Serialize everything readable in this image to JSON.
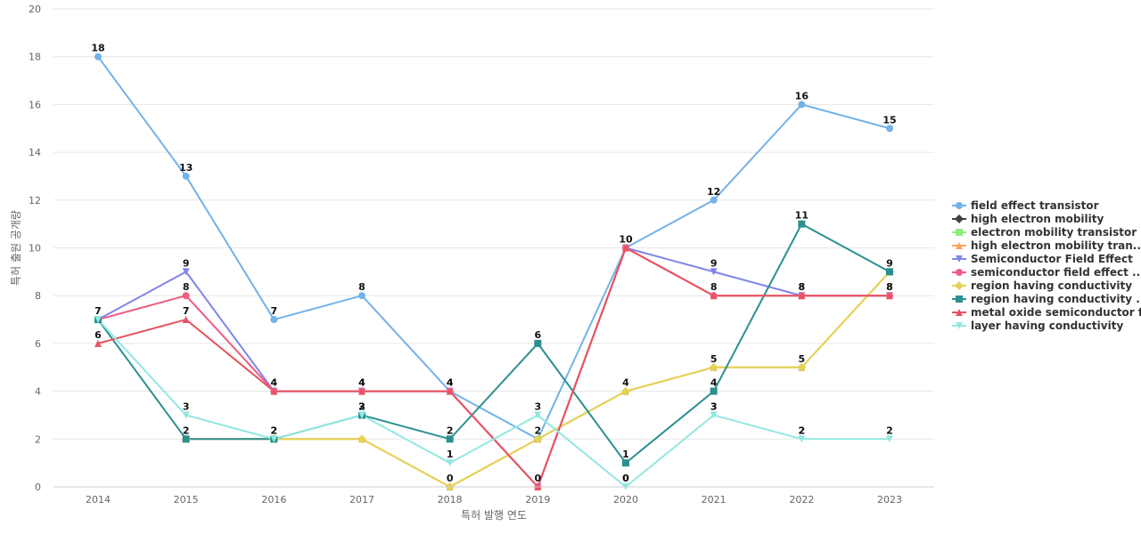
{
  "chart_data": {
    "type": "line",
    "title": "",
    "xlabel": "특허 발행 연도",
    "ylabel": "특허 출원 공개량",
    "ylim": [
      0,
      20
    ],
    "yticks": [
      0,
      2,
      4,
      6,
      8,
      10,
      12,
      14,
      16,
      18,
      20
    ],
    "grid": true,
    "legend_position": "right",
    "categories": [
      "2014",
      "2015",
      "2016",
      "2017",
      "2018",
      "2019",
      "2020",
      "2021",
      "2022",
      "2023"
    ],
    "series": [
      {
        "name": "field effect transistor",
        "color": "#74b2e8",
        "marker": "circle",
        "values": [
          18,
          13,
          7,
          8,
          4,
          2,
          10,
          12,
          16,
          15
        ],
        "labels": [
          18,
          13,
          7,
          8,
          null,
          null,
          null,
          12,
          16,
          15
        ]
      },
      {
        "name": "high electron mobility",
        "color": "#404040",
        "marker": "diamond",
        "values": [
          null,
          null,
          null,
          null,
          null,
          null,
          null,
          null,
          null,
          null
        ],
        "labels": [
          null,
          null,
          null,
          null,
          null,
          null,
          null,
          null,
          null,
          null
        ]
      },
      {
        "name": "electron mobility transistor",
        "color": "#90ed7d",
        "marker": "square",
        "values": [
          null,
          null,
          null,
          null,
          null,
          null,
          null,
          null,
          null,
          null
        ],
        "labels": [
          null,
          null,
          null,
          null,
          null,
          null,
          null,
          null,
          null,
          null
        ]
      },
      {
        "name": "high electron mobility tran...",
        "color": "#f7a35c",
        "marker": "triangle",
        "values": [
          null,
          2,
          2,
          2,
          0,
          2,
          4,
          5,
          5,
          9
        ],
        "labels": [
          null,
          null,
          null,
          null,
          null,
          null,
          null,
          null,
          null,
          null
        ]
      },
      {
        "name": "Semiconductor Field Effect",
        "color": "#8085e9",
        "marker": "triangle-down",
        "values": [
          7,
          9,
          4,
          4,
          4,
          0,
          10,
          9,
          8,
          8
        ],
        "labels": [
          null,
          9,
          null,
          null,
          null,
          null,
          null,
          9,
          null,
          null
        ]
      },
      {
        "name": "semiconductor field effect ...",
        "color": "#f15c80",
        "marker": "circle",
        "values": [
          7,
          8,
          4,
          4,
          4,
          0,
          10,
          8,
          8,
          8
        ],
        "labels": [
          null,
          8,
          null,
          null,
          null,
          null,
          null,
          null,
          null,
          null
        ]
      },
      {
        "name": "region having conductivity",
        "color": "#e4d354",
        "marker": "diamond",
        "values": [
          null,
          2,
          2,
          2,
          0,
          2,
          4,
          5,
          5,
          9
        ],
        "labels": [
          null,
          null,
          null,
          null,
          null,
          null,
          4,
          5,
          5,
          null
        ]
      },
      {
        "name": "region having conductivity ...",
        "color": "#2b908f",
        "marker": "square",
        "values": [
          7,
          2,
          2,
          3,
          2,
          6,
          1,
          4,
          11,
          9
        ],
        "labels": [
          null,
          2,
          2,
          2,
          2,
          6,
          1,
          4,
          11,
          9
        ]
      },
      {
        "name": "metal oxide semiconductor f...",
        "color": "#e8525f",
        "marker": "triangle",
        "values": [
          6,
          7,
          4,
          4,
          4,
          0,
          10,
          8,
          8,
          8
        ],
        "labels": [
          6,
          7,
          4,
          4,
          4,
          0,
          10,
          8,
          8,
          8
        ]
      },
      {
        "name": "layer having conductivity",
        "color": "#91e8e1",
        "marker": "triangle-down",
        "values": [
          7,
          3,
          2,
          3,
          1,
          3,
          0,
          3,
          2,
          2
        ],
        "labels": [
          7,
          3,
          null,
          3,
          1,
          3,
          0,
          3,
          2,
          2
        ]
      }
    ],
    "extra_labels": [
      {
        "x": "2016",
        "text": "2",
        "y": 2
      },
      {
        "x": "2017",
        "text": "4",
        "y": 4
      },
      {
        "x": "2018",
        "text": "0",
        "y": 0
      },
      {
        "x": "2018",
        "text": "4",
        "y": 4
      },
      {
        "x": "2019",
        "text": "2",
        "y": 2
      },
      {
        "x": "2020",
        "text": "0",
        "y": 0
      },
      {
        "x": "2021",
        "text": "3",
        "y": 3
      },
      {
        "x": "2022",
        "text": "8",
        "y": 8
      },
      {
        "x": "2022",
        "text": "2",
        "y": 2
      },
      {
        "x": "2023",
        "text": "8",
        "y": 8
      },
      {
        "x": "2016",
        "text": "4",
        "y": 4
      }
    ]
  }
}
